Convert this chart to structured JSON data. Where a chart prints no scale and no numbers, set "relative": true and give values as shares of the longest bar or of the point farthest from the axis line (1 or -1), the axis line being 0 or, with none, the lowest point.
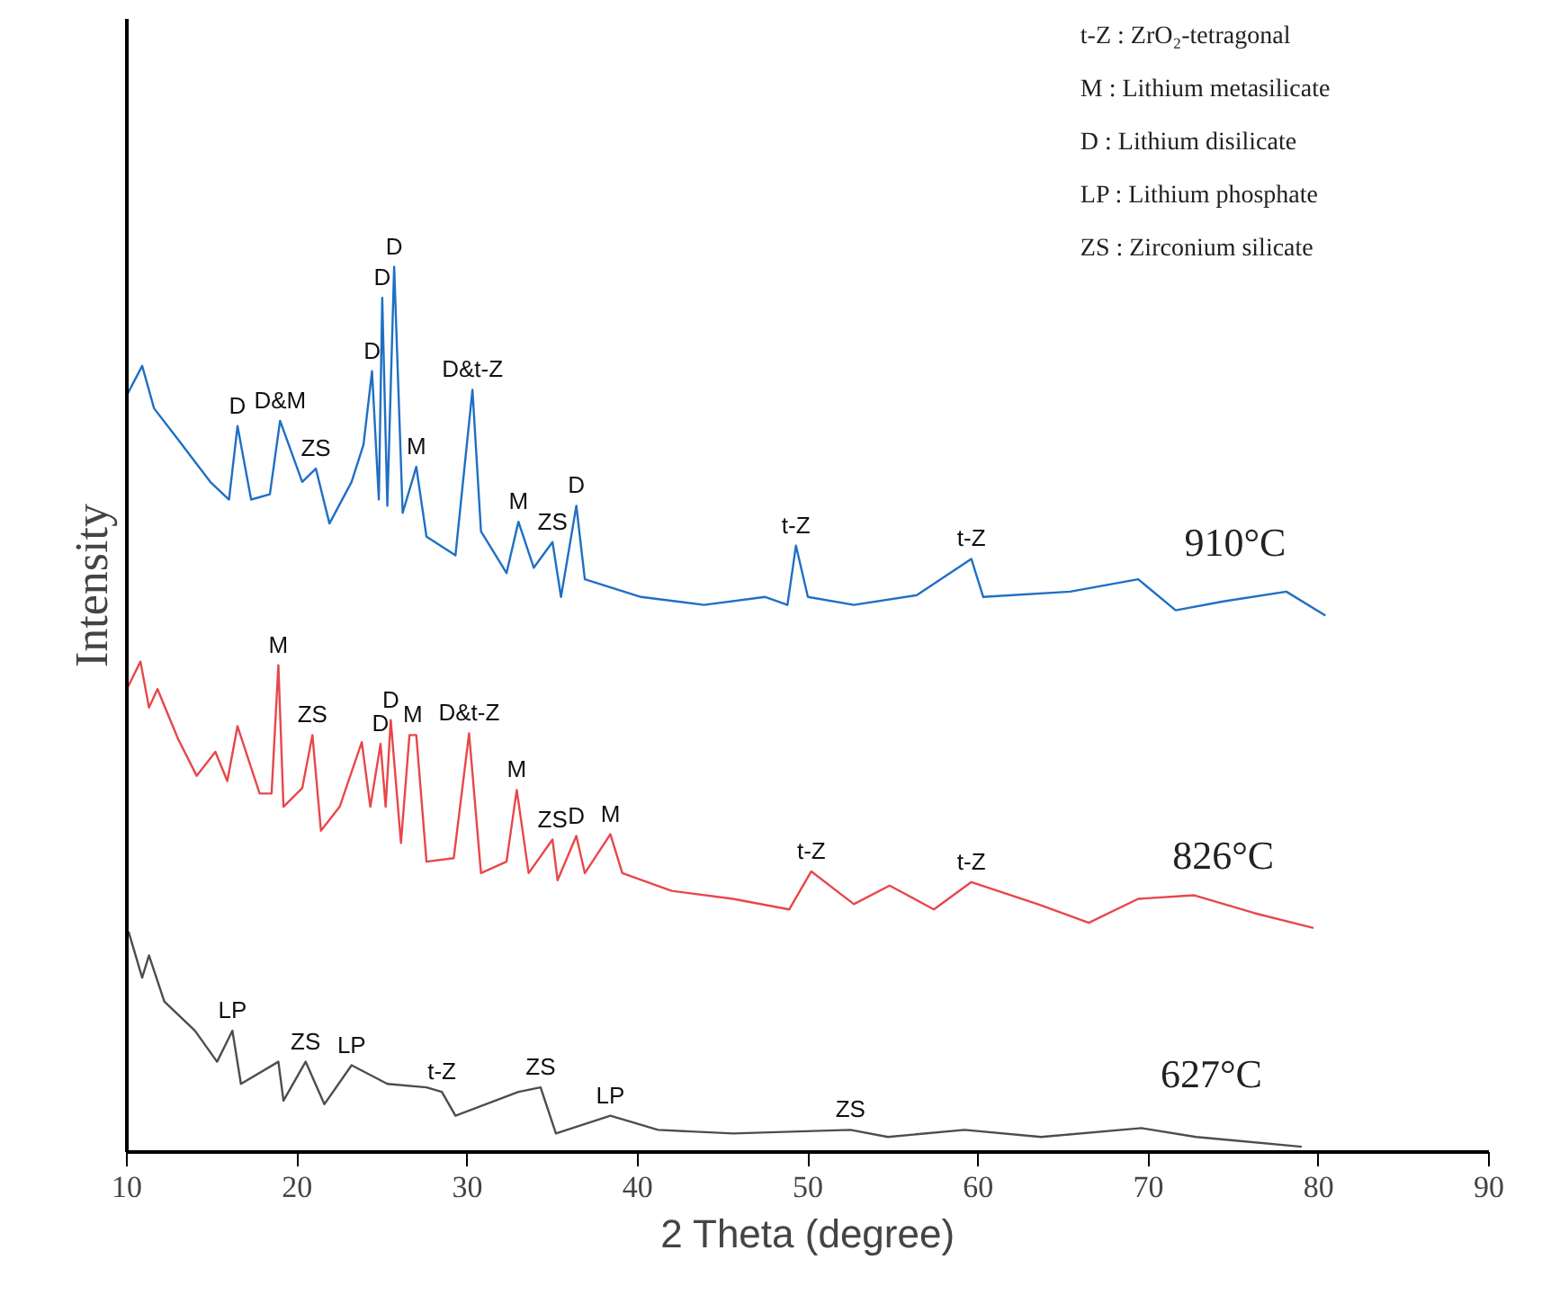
{
  "chart_data": {
    "type": "line",
    "relative": true,
    "xlabel": "2 Theta (degree)",
    "ylabel": "Intensity",
    "xlim": [
      10,
      90
    ],
    "xticks": [
      10,
      20,
      30,
      40,
      50,
      60,
      70,
      80,
      90
    ],
    "grid": false,
    "marker": "none",
    "line_style": "solid",
    "series": [
      {
        "name": "910°C",
        "color": "#1f6fc5",
        "x": [
          10.0,
          10.9,
          11.6,
          13.0,
          14.9,
          16.0,
          16.5,
          17.3,
          18.4,
          19.0,
          20.3,
          21.1,
          21.9,
          23.2,
          23.9,
          24.4,
          24.8,
          25.0,
          25.3,
          25.7,
          26.2,
          27.0,
          27.6,
          29.3,
          30.3,
          30.8,
          32.3,
          33.0,
          33.9,
          35.0,
          35.5,
          36.4,
          36.9,
          40.2,
          43.9,
          47.5,
          48.8,
          49.3,
          50.0,
          52.7,
          56.4,
          59.6,
          60.3,
          65.4,
          69.4,
          71.6,
          74.4,
          78.1,
          80.4
        ],
        "values": [
          0.855,
          0.888,
          0.84,
          0.805,
          0.757,
          0.737,
          0.82,
          0.737,
          0.743,
          0.826,
          0.757,
          0.772,
          0.71,
          0.757,
          0.799,
          0.882,
          0.737,
          0.965,
          0.73,
          1.0,
          0.722,
          0.774,
          0.695,
          0.674,
          0.861,
          0.701,
          0.654,
          0.712,
          0.66,
          0.689,
          0.627,
          0.73,
          0.647,
          0.627,
          0.618,
          0.627,
          0.618,
          0.685,
          0.627,
          0.618,
          0.629,
          0.67,
          0.627,
          0.633,
          0.647,
          0.612,
          0.622,
          0.633,
          0.606
        ]
      },
      {
        "name": "826°C",
        "color": "#e8474b",
        "x": [
          10.0,
          10.8,
          11.3,
          11.8,
          13.0,
          14.1,
          15.2,
          15.9,
          16.5,
          17.8,
          18.5,
          18.9,
          19.2,
          20.3,
          20.9,
          21.4,
          22.5,
          23.8,
          24.3,
          24.9,
          25.2,
          25.5,
          26.1,
          26.6,
          27.0,
          27.6,
          29.2,
          30.1,
          30.8,
          32.3,
          32.9,
          33.6,
          35.0,
          35.3,
          36.4,
          36.9,
          38.4,
          39.1,
          42.0,
          45.6,
          48.9,
          50.2,
          52.7,
          54.8,
          57.4,
          59.6,
          63.5,
          66.5,
          69.4,
          72.7,
          76.2,
          79.7
        ],
        "values": [
          0.523,
          0.554,
          0.502,
          0.523,
          0.467,
          0.425,
          0.452,
          0.419,
          0.481,
          0.405,
          0.405,
          0.55,
          0.39,
          0.411,
          0.471,
          0.363,
          0.39,
          0.463,
          0.39,
          0.461,
          0.39,
          0.488,
          0.349,
          0.471,
          0.471,
          0.328,
          0.332,
          0.473,
          0.315,
          0.328,
          0.409,
          0.315,
          0.353,
          0.307,
          0.357,
          0.315,
          0.359,
          0.315,
          0.295,
          0.286,
          0.274,
          0.317,
          0.28,
          0.301,
          0.274,
          0.305,
          0.28,
          0.259,
          0.286,
          0.29,
          0.27,
          0.253
        ]
      },
      {
        "name": "627°C",
        "color": "#4d4d4d",
        "x": [
          10.1,
          10.9,
          11.3,
          12.2,
          14.0,
          15.3,
          16.2,
          16.7,
          18.9,
          19.2,
          20.5,
          21.6,
          23.2,
          25.3,
          27.6,
          28.5,
          29.3,
          33.0,
          34.3,
          35.2,
          38.4,
          41.2,
          45.6,
          52.5,
          54.7,
          59.2,
          63.7,
          69.6,
          72.8,
          79.0
        ],
        "values": [
          0.249,
          0.197,
          0.222,
          0.17,
          0.137,
          0.102,
          0.137,
          0.077,
          0.102,
          0.058,
          0.102,
          0.054,
          0.098,
          0.077,
          0.073,
          0.068,
          0.041,
          0.068,
          0.073,
          0.021,
          0.041,
          0.025,
          0.021,
          0.025,
          0.017,
          0.025,
          0.017,
          0.027,
          0.017,
          0.006
        ]
      }
    ],
    "annotations": [
      "t-Z : ZrO₂-tetragonal",
      "M : Lithium metasilicate",
      "D : Lithium disilicate",
      "LP : Lithium phosphate",
      "ZS : Zirconium silicate",
      {
        "text": "D",
        "x": 16.5,
        "y": 0.82
      },
      {
        "text": "D&M",
        "x": 19.0,
        "y": 0.826
      },
      {
        "text": "ZS",
        "x": 21.1,
        "y": 0.772
      },
      {
        "text": "D",
        "x": 24.4,
        "y": 0.882
      },
      {
        "text": "D",
        "x": 25.0,
        "y": 0.965
      },
      {
        "text": "D",
        "x": 25.7,
        "y": 1.0
      },
      {
        "text": "M",
        "x": 27.0,
        "y": 0.774
      },
      {
        "text": "D&t-Z",
        "x": 30.3,
        "y": 0.861
      },
      {
        "text": "M",
        "x": 33.0,
        "y": 0.712
      },
      {
        "text": "ZS",
        "x": 35.0,
        "y": 0.689
      },
      {
        "text": "D",
        "x": 36.4,
        "y": 0.73
      },
      {
        "text": "t-Z",
        "x": 49.3,
        "y": 0.685
      },
      {
        "text": "t-Z",
        "x": 59.6,
        "y": 0.67
      },
      {
        "text": "M",
        "x": 18.9,
        "y": 0.55
      },
      {
        "text": "ZS",
        "x": 20.9,
        "y": 0.471
      },
      {
        "text": "D",
        "x": 24.9,
        "y": 0.461
      },
      {
        "text": "D",
        "x": 25.5,
        "y": 0.488
      },
      {
        "text": "M",
        "x": 26.8,
        "y": 0.471
      },
      {
        "text": "D&t-Z",
        "x": 30.1,
        "y": 0.473
      },
      {
        "text": "M",
        "x": 32.9,
        "y": 0.409
      },
      {
        "text": "ZS",
        "x": 35.0,
        "y": 0.353
      },
      {
        "text": "D",
        "x": 36.4,
        "y": 0.357
      },
      {
        "text": "M",
        "x": 38.4,
        "y": 0.359
      },
      {
        "text": "t-Z",
        "x": 50.2,
        "y": 0.317
      },
      {
        "text": "t-Z",
        "x": 59.6,
        "y": 0.305
      },
      {
        "text": "LP",
        "x": 16.2,
        "y": 0.137
      },
      {
        "text": "ZS",
        "x": 20.5,
        "y": 0.102
      },
      {
        "text": "LP",
        "x": 23.2,
        "y": 0.098
      },
      {
        "text": "t-Z",
        "x": 28.5,
        "y": 0.068
      },
      {
        "text": "ZS",
        "x": 34.3,
        "y": 0.073
      },
      {
        "text": "LP",
        "x": 38.4,
        "y": 0.041
      },
      {
        "text": "ZS",
        "x": 52.5,
        "y": 0.025
      }
    ]
  }
}
